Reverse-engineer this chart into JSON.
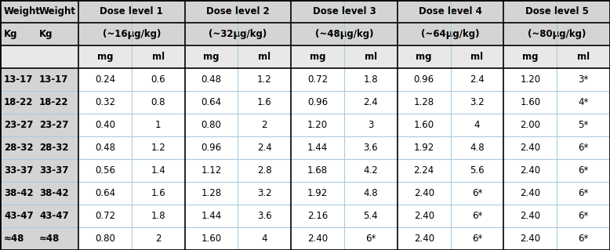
{
  "dose_labels": [
    "Dose level 1",
    "Dose level 2",
    "Dose level 3",
    "Dose level 4",
    "Dose level 5"
  ],
  "dose_sublabels": [
    "(~16μg/kg)",
    "(~32μg/kg)",
    "(~48μg/kg)",
    "(~64μg/kg)",
    "(~80μg/kg)"
  ],
  "rows": [
    [
      "13-17",
      "0.24",
      "0.6",
      "0.48",
      "1.2",
      "0.72",
      "1.8",
      "0.96",
      "2.4",
      "1.20",
      "3*"
    ],
    [
      "18-22",
      "0.32",
      "0.8",
      "0.64",
      "1.6",
      "0.96",
      "2.4",
      "1.28",
      "3.2",
      "1.60",
      "4*"
    ],
    [
      "23-27",
      "0.40",
      "1",
      "0.80",
      "2",
      "1.20",
      "3",
      "1.60",
      "4",
      "2.00",
      "5*"
    ],
    [
      "28-32",
      "0.48",
      "1.2",
      "0.96",
      "2.4",
      "1.44",
      "3.6",
      "1.92",
      "4.8",
      "2.40",
      "6*"
    ],
    [
      "33-37",
      "0.56",
      "1.4",
      "1.12",
      "2.8",
      "1.68",
      "4.2",
      "2.24",
      "5.6",
      "2.40",
      "6*"
    ],
    [
      "38-42",
      "0.64",
      "1.6",
      "1.28",
      "3.2",
      "1.92",
      "4.8",
      "2.40",
      "6*",
      "2.40",
      "6*"
    ],
    [
      "43-47",
      "0.72",
      "1.8",
      "1.44",
      "3.6",
      "2.16",
      "5.4",
      "2.40",
      "6*",
      "2.40",
      "6*"
    ],
    [
      "≈48",
      "0.80",
      "2",
      "1.60",
      "4",
      "2.40",
      "6*",
      "2.40",
      "6*",
      "2.40",
      "6*"
    ]
  ],
  "header_bg": "#d4d4d4",
  "subheader_bg": "#e8e8e8",
  "data_bg": "#ffffff",
  "border_outer": "#000000",
  "border_inner_dark": "#000000",
  "border_inner_light": "#aacce0",
  "text_color": "#000000",
  "font_size": 8.5
}
